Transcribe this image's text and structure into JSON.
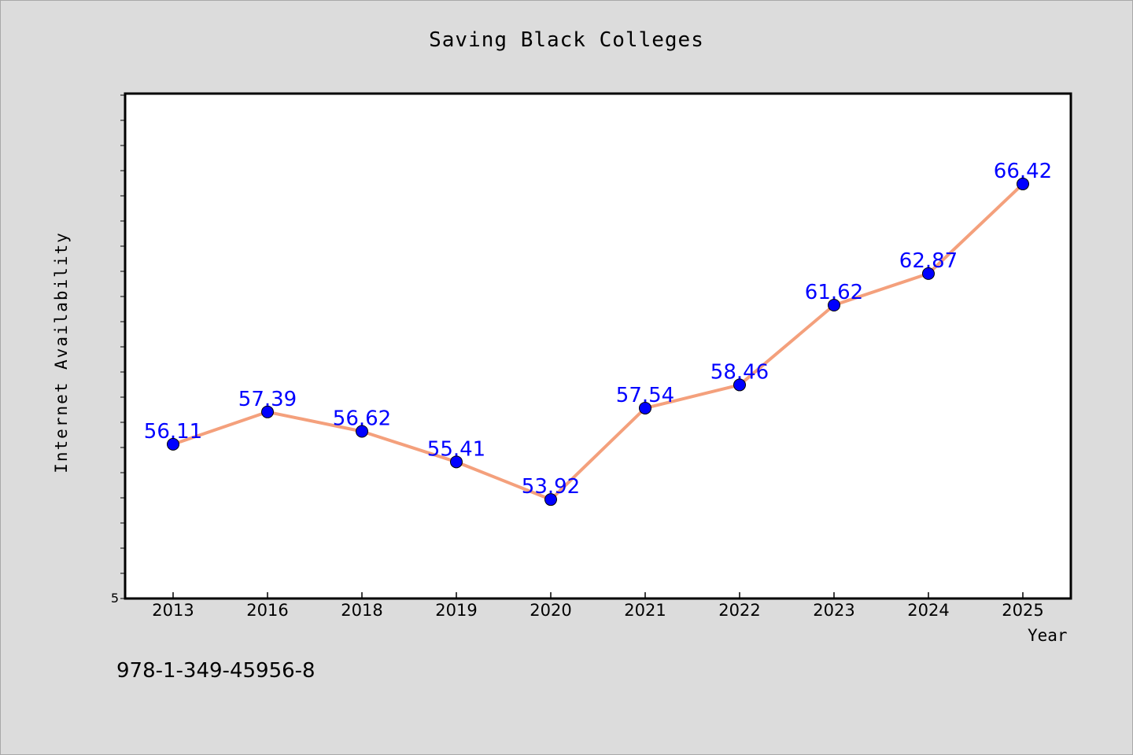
{
  "chart_data": {
    "type": "line",
    "title": "Saving Black Colleges",
    "xlabel": "Year",
    "ylabel": "Internet Availability",
    "categories": [
      "2013",
      "2016",
      "2018",
      "2019",
      "2020",
      "2021",
      "2022",
      "2023",
      "2024",
      "2025"
    ],
    "series": [
      {
        "values": [
          56.11,
          57.39,
          56.62,
          55.41,
          53.92,
          57.54,
          58.46,
          61.62,
          62.87,
          66.42
        ],
        "labels": [
          "56.11",
          "57.39",
          "56.62",
          "55.41",
          "53.92",
          "57.54",
          "58.46",
          "61.62",
          "62.87",
          "66.42"
        ]
      }
    ],
    "y_tick_label": "5",
    "ylim": [
      50,
      70
    ],
    "grid": false,
    "line_color": "#f4a07c",
    "marker_color": "#0000ff",
    "label_color": "#0000ff"
  },
  "footnote": "978-1-349-45956-8"
}
